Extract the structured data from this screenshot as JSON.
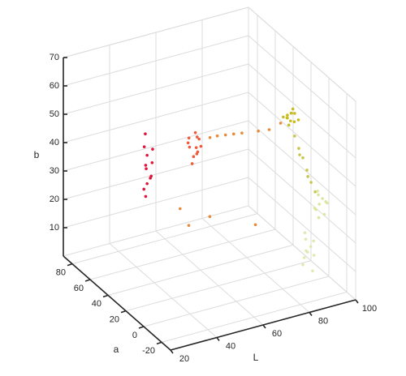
{
  "chart_data": {
    "type": "scatter3d",
    "xlabel": "L",
    "ylabel": "a",
    "zlabel": "b",
    "xlim": [
      20,
      100
    ],
    "xticks": [
      20,
      40,
      60,
      80,
      100
    ],
    "ylim": [
      -30,
      90
    ],
    "yticks": [
      -20,
      0,
      20,
      40,
      60,
      80
    ],
    "zlim": [
      0,
      70
    ],
    "zticks": [
      10,
      20,
      30,
      40,
      50,
      60,
      70
    ],
    "grid": true,
    "series": [
      {
        "color": "#e0143c",
        "x": [
          44,
          45,
          46,
          45,
          44,
          46,
          45,
          47,
          43,
          45,
          46,
          44
        ],
        "y": [
          60,
          61,
          59,
          62,
          60,
          58,
          61,
          60,
          59,
          63,
          60,
          62
        ],
        "z": [
          24,
          28,
          31,
          33,
          35,
          36,
          38,
          40,
          42,
          45,
          30,
          26
        ]
      },
      {
        "color": "#f05a3c",
        "x": [
          61,
          62,
          63,
          62,
          60,
          64,
          62,
          61,
          63,
          62,
          60,
          64
        ],
        "y": [
          52,
          53,
          51,
          50,
          54,
          52,
          49,
          55,
          52,
          51,
          53,
          50
        ],
        "z": [
          34,
          36,
          38,
          40,
          41,
          42,
          44,
          39,
          37,
          45,
          43,
          40
        ]
      },
      {
        "color": "#e88a3a",
        "x": [
          66,
          70,
          74,
          78,
          80,
          83,
          68,
          72,
          55,
          58,
          64,
          76
        ],
        "y": [
          45,
          38,
          30,
          22,
          15,
          10,
          42,
          34,
          50,
          48,
          40,
          20
        ],
        "z": [
          44,
          46,
          48,
          50,
          52,
          55,
          45,
          47,
          20,
          14,
          18,
          18
        ]
      },
      {
        "color": "#c8bc1e",
        "x": [
          84,
          85,
          86,
          85,
          87,
          83,
          86,
          85,
          84,
          88,
          85,
          86
        ],
        "y": [
          5,
          4,
          6,
          3,
          5,
          7,
          4,
          6,
          5,
          3,
          8,
          2
        ],
        "z": [
          58,
          57,
          59,
          60,
          56,
          58,
          61,
          55,
          59,
          57,
          57,
          60
        ]
      },
      {
        "color": "#c9c64a",
        "x": [
          86,
          87,
          88,
          89,
          90,
          87,
          89,
          91
        ],
        "y": [
          2,
          0,
          -2,
          -4,
          -6,
          -1,
          -5,
          -8
        ],
        "z": [
          52,
          48,
          45,
          41,
          37,
          46,
          39,
          34
        ]
      },
      {
        "color": "#dde5a0",
        "x": [
          92,
          93,
          91,
          94,
          92,
          90,
          93,
          95,
          92,
          91
        ],
        "y": [
          -10,
          -11,
          -9,
          -12,
          -8,
          -10,
          -13,
          -11,
          -9,
          -12
        ],
        "z": [
          30,
          32,
          28,
          31,
          34,
          29,
          27,
          30,
          33,
          26
        ]
      },
      {
        "color": "#e2e9ae",
        "x": [
          85,
          86,
          84,
          87,
          85,
          83,
          86,
          84,
          88,
          85
        ],
        "y": [
          -15,
          -16,
          -14,
          -17,
          -13,
          -15,
          -18,
          -16,
          -14,
          -12
        ],
        "z": [
          16,
          18,
          14,
          15,
          20,
          12,
          10,
          17,
          19,
          22
        ]
      }
    ]
  }
}
